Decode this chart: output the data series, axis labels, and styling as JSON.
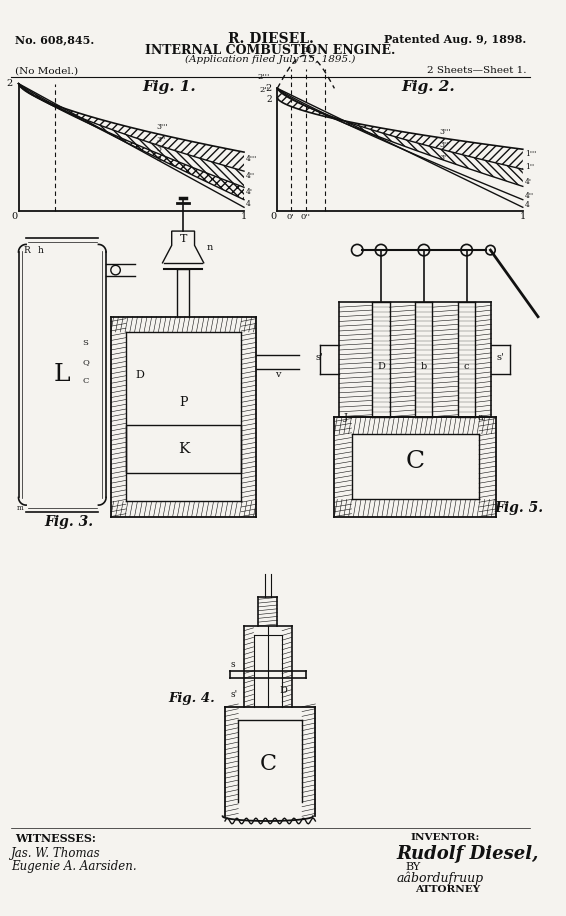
{
  "bg_color": "#f5f3ef",
  "text_color": "#111111",
  "patent_no": "No. 608,845.",
  "patented": "Patented Aug. 9, 1898.",
  "title1": "R. DIESEL.",
  "title2": "INTERNAL COMBUSTION ENGINE.",
  "title3": "(Application filed July 15, 1895.)",
  "no_model": "(No Model.)",
  "sheets": "2 Sheets—Sheet 1.",
  "fig1_label": "Fig. 1.",
  "fig2_label": "Fig. 2.",
  "fig3_label": "Fig. 3.",
  "fig4_label": "Fig. 4.",
  "fig5_label": "Fig. 5.",
  "witnesses_label": "WITNESSES:",
  "witness1": "Jas. W. Thomas",
  "witness2": "Eugenie A. Aarsiden.",
  "inventor_label": "INVENTOR:",
  "inventor_name": "Rudolf Diesel,",
  "by_label": "BY",
  "attorney_sig": "aâbordufruup",
  "attorney_label": "ATTORNEY"
}
